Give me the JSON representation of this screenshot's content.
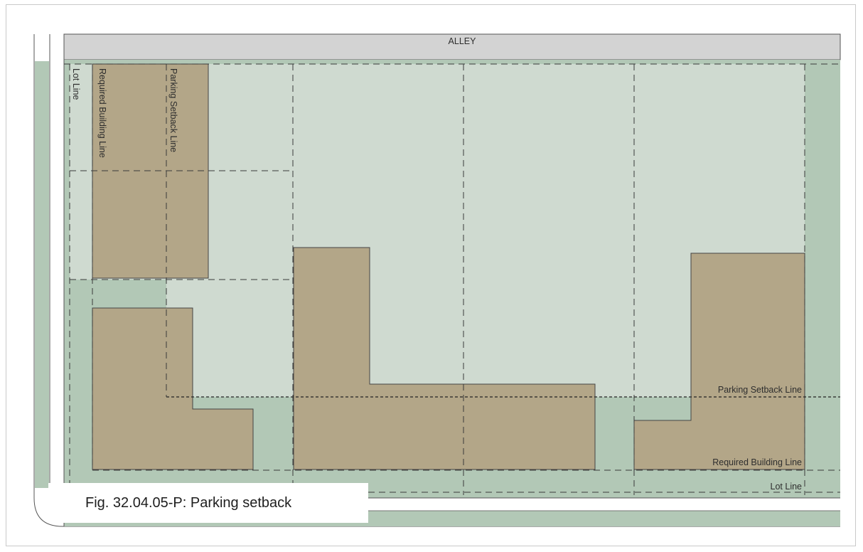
{
  "street_label": "ALLEY",
  "labels": {
    "lot_line_vertical": "Lot Line",
    "required_building_line_vertical": "Required Building Line",
    "parking_setback_line_vertical": "Parking Setback Line",
    "parking_setback_line_horizontal": "Parking Setback Line",
    "required_building_line_horizontal": "Required Building Line",
    "lot_line_horizontal": "Lot Line"
  },
  "caption": "Fig. 32.04.05-P: Parking setback",
  "colors": {
    "alley": "#d3d3d3",
    "block": "#b2c8b6",
    "lot": "#cfdad0",
    "building": "#b3a688",
    "line": "#3a3a3a"
  }
}
